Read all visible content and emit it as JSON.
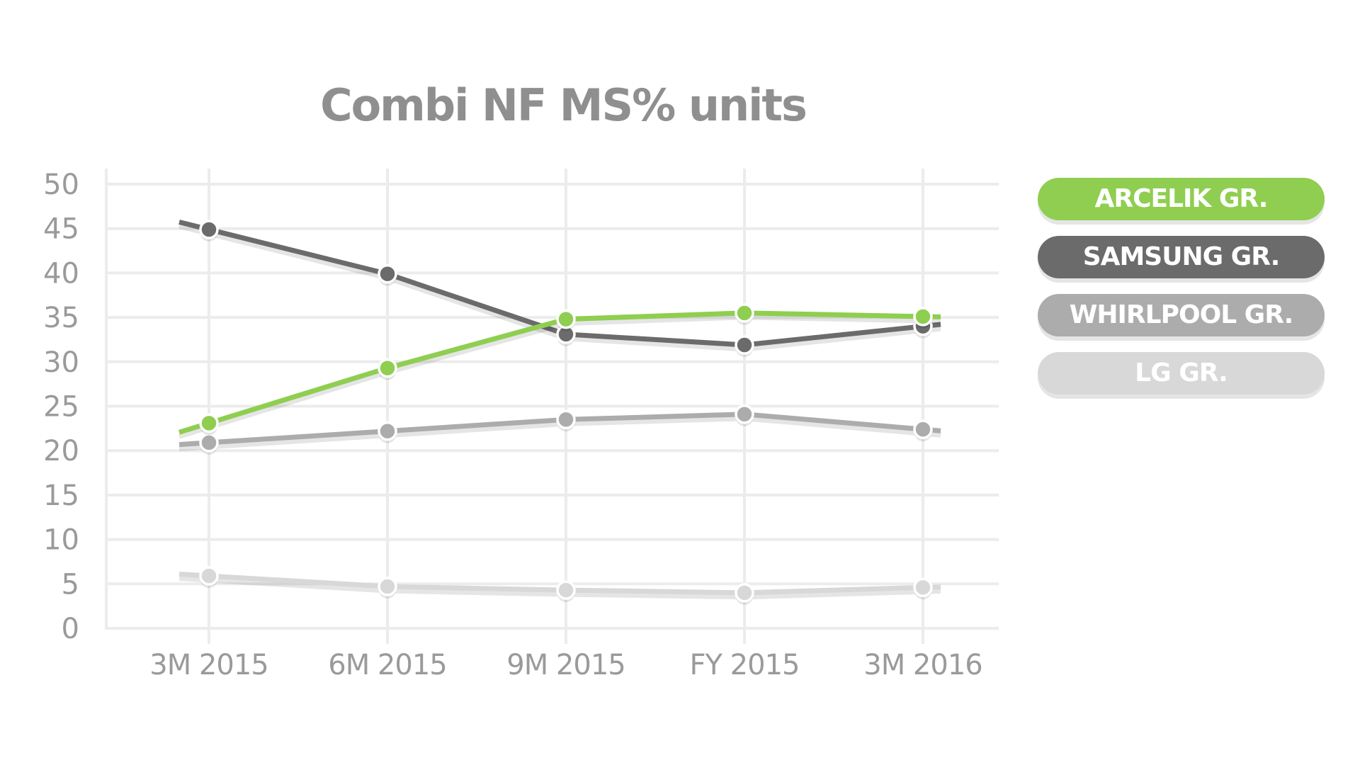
{
  "chart_data": {
    "type": "line",
    "title": "Combi NF MS% units",
    "xlabel": "",
    "ylabel": "",
    "categories": [
      "3M 2015",
      "6M 2015",
      "9M 2015",
      "FY 2015",
      "3M 2016"
    ],
    "yticks": [
      "0",
      "5",
      "10",
      "15",
      "20",
      "25",
      "30",
      "35",
      "40",
      "45",
      "50"
    ],
    "ylim": [
      0,
      50
    ],
    "grid": true,
    "legend_position": "right",
    "series": [
      {
        "name": "ARCELIK GR.",
        "color": "#8fce50",
        "values": [
          23.1,
          29.3,
          34.8,
          35.5,
          35.1
        ]
      },
      {
        "name": "SAMSUNG GR.",
        "color": "#6b6b6b",
        "values": [
          44.9,
          39.9,
          33.1,
          31.9,
          34.0
        ]
      },
      {
        "name": "WHIRLPOOL GR.",
        "color": "#acacac",
        "values": [
          20.9,
          22.2,
          23.5,
          24.1,
          22.4
        ]
      },
      {
        "name": "LG GR.",
        "color": "#d8d8d8",
        "values": [
          5.9,
          4.7,
          4.3,
          4.0,
          4.6
        ]
      }
    ]
  }
}
